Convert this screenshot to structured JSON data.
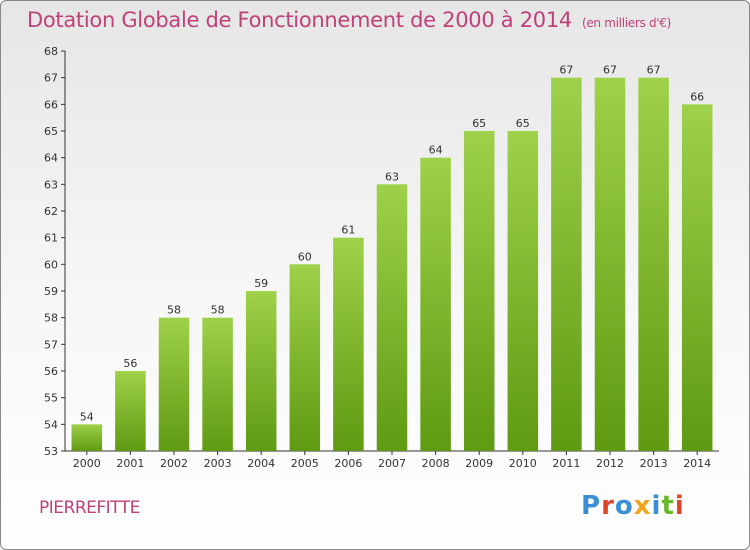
{
  "header": {
    "title": "Dotation Globale de Fonctionnement de 2000 à 2014",
    "subtitle": "(en milliers d'€)"
  },
  "footer": {
    "city": "PIERREFITTE",
    "logo": "Proxiti"
  },
  "colors": {
    "bar_top": "#9fd14a",
    "bar_bottom": "#5f9a12",
    "title": "#c0407a"
  },
  "chart_data": {
    "type": "bar",
    "categories": [
      "2000",
      "2001",
      "2002",
      "2003",
      "2004",
      "2005",
      "2006",
      "2007",
      "2008",
      "2009",
      "2010",
      "2011",
      "2012",
      "2013",
      "2014"
    ],
    "values": [
      54,
      56,
      58,
      58,
      59,
      60,
      61,
      63,
      64,
      65,
      65,
      67,
      67,
      67,
      66
    ],
    "title": "Dotation Globale de Fonctionnement de 2000 à 2014",
    "subtitle": "(en milliers d'€)",
    "xlabel": "",
    "ylabel": "",
    "ylim": [
      53,
      68
    ],
    "yticks": [
      53,
      54,
      55,
      56,
      57,
      58,
      59,
      60,
      61,
      62,
      63,
      64,
      65,
      66,
      67,
      68
    ],
    "grid": false,
    "legend": "none"
  }
}
